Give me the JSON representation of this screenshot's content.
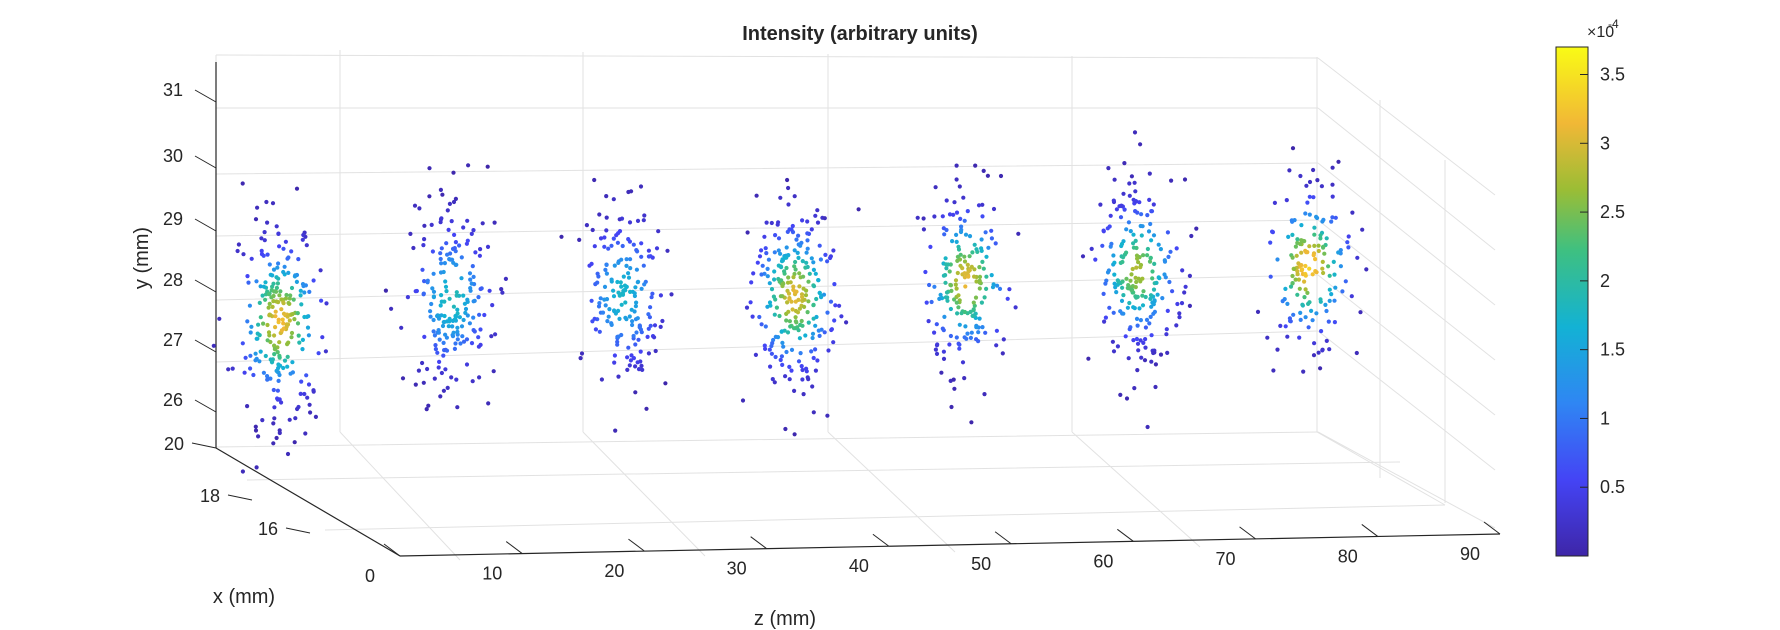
{
  "chart_data": {
    "type": "scatter",
    "title": "Intensity (arbitrary units)",
    "xlabel": "z (mm)",
    "ylabel": "y (mm)",
    "depthlabel": "x (mm)",
    "zlim": [
      0,
      90
    ],
    "ylim": [
      25.5,
      31.3
    ],
    "xlim": [
      15,
      20
    ],
    "z_ticks": [
      "0",
      "10",
      "20",
      "30",
      "40",
      "50",
      "60",
      "70",
      "80",
      "90"
    ],
    "y_ticks": [
      "26",
      "27",
      "28",
      "29",
      "30",
      "31"
    ],
    "x_ticks": [
      "16",
      "18",
      "20"
    ],
    "grid": true,
    "colormap": "parula",
    "colorbar": {
      "range": [
        0,
        0.00037
      ],
      "tick_labels": [
        "0.5",
        "1",
        "1.5",
        "2",
        "2.5",
        "3",
        "3.5"
      ],
      "tick_values": [
        0.5,
        1,
        1.5,
        2,
        2.5,
        3,
        3.5
      ],
      "exponent_base": "×10",
      "exponent": "-4"
    },
    "clusters": [
      {
        "z": 0,
        "y_center": 27.4,
        "peak": 3.1,
        "count": 260
      },
      {
        "z": 14,
        "y_center": 27.6,
        "peak": 1.8,
        "count": 210
      },
      {
        "z": 28,
        "y_center": 27.5,
        "peak": 1.7,
        "count": 190
      },
      {
        "z": 42,
        "y_center": 27.3,
        "peak": 3.0,
        "count": 260
      },
      {
        "z": 56,
        "y_center": 27.4,
        "peak": 3.0,
        "count": 200
      },
      {
        "z": 70,
        "y_center": 27.4,
        "peak": 2.7,
        "count": 230
      },
      {
        "z": 84,
        "y_center": 27.3,
        "peak": 3.3,
        "count": 170
      }
    ]
  }
}
